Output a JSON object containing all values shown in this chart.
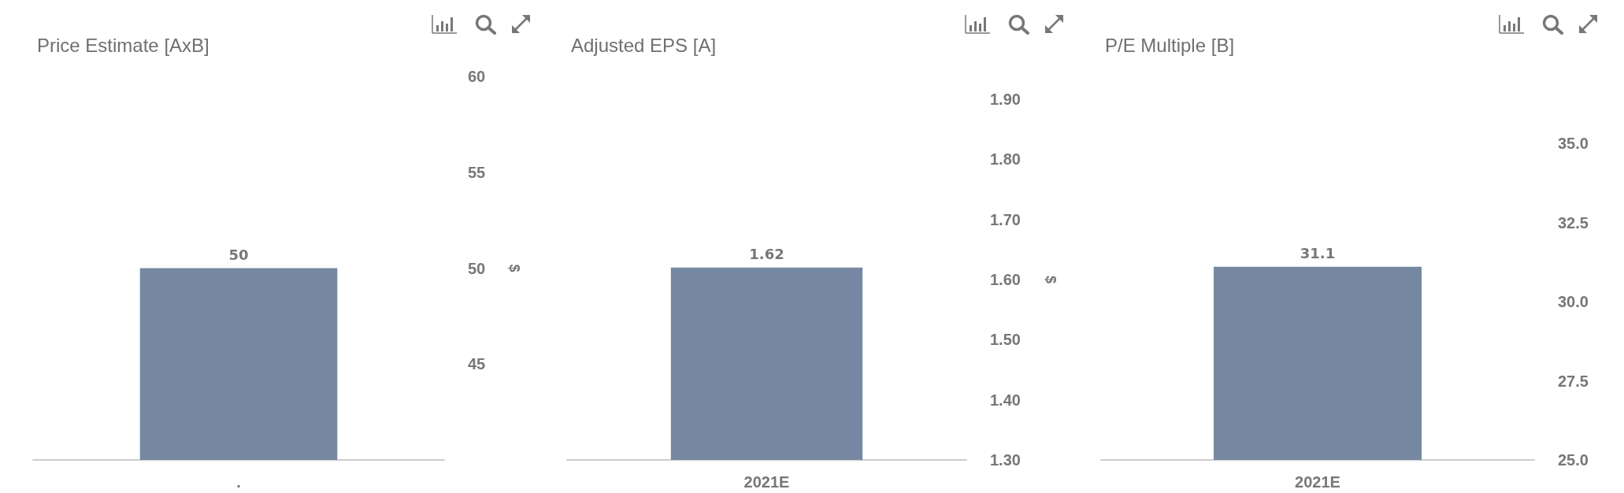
{
  "chart_data": [
    {
      "type": "bar",
      "title": "Price Estimate [AxB]",
      "categories": [
        "."
      ],
      "values": [
        50
      ],
      "color": "#7688a1",
      "ylabel": "$",
      "ylim": [
        40,
        60
      ],
      "yticks": [
        45,
        50,
        55,
        60
      ],
      "data_labels": true
    },
    {
      "type": "bar",
      "title": "Adjusted EPS [A]",
      "categories": [
        "2021E"
      ],
      "values": [
        1.62
      ],
      "color": "#7688a1",
      "ylabel": "$",
      "ylim": [
        1.3,
        1.9
      ],
      "yticks": [
        {
          "value": 1.3,
          "label": "1.30"
        },
        {
          "value": 1.4,
          "label": "1.40"
        },
        {
          "value": 1.5,
          "label": "1.50"
        },
        {
          "value": 1.6,
          "label": "1.60"
        },
        {
          "value": 1.7,
          "label": "1.70"
        },
        {
          "value": 1.8,
          "label": "1.80"
        },
        {
          "value": 1.9,
          "label": "1.90"
        }
      ],
      "data_labels": true
    },
    {
      "type": "bar",
      "title": "P/E Multiple [B]",
      "categories": [
        "2021E"
      ],
      "values": [
        31.1
      ],
      "color": "#7688a1",
      "ylim": [
        25,
        35
      ],
      "yticks": [
        {
          "value": 25,
          "label": "25.0"
        },
        {
          "value": 27.5,
          "label": "27.5"
        },
        {
          "value": 30,
          "label": "30.0"
        },
        {
          "value": 32.5,
          "label": "32.5"
        },
        {
          "value": 35,
          "label": "35.0"
        }
      ],
      "data_labels": true
    }
  ]
}
